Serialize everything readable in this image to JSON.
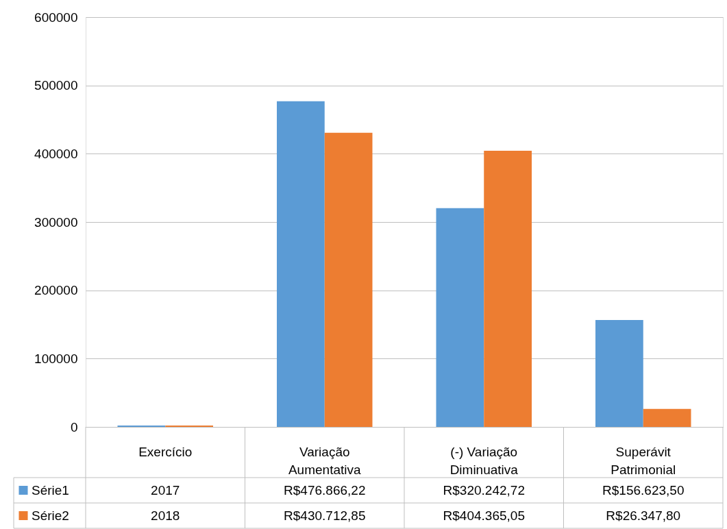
{
  "chart_data": {
    "type": "bar",
    "categories": [
      "Exercício",
      "Variação Aumentativa",
      "(-) Variação Diminuativa",
      "Superávit Patrimonial"
    ],
    "series": [
      {
        "name": "Série1",
        "color": "#5b9bd5",
        "values": [
          2017,
          476866.22,
          320242.72,
          156623.5
        ],
        "value_labels": [
          "2017",
          "R$476.866,22",
          "R$320.242,72",
          "R$156.623,50"
        ]
      },
      {
        "name": "Série2",
        "color": "#ed7d31",
        "values": [
          2018,
          430712.85,
          404365.05,
          26347.8
        ],
        "value_labels": [
          "2018",
          "R$430.712,85",
          "R$404.365,05",
          "R$26.347,80"
        ]
      }
    ],
    "ylim": [
      0,
      600000
    ],
    "yticks": [
      0,
      100000,
      200000,
      300000,
      400000,
      500000,
      600000
    ],
    "grid": "y",
    "legend": "bottom"
  }
}
